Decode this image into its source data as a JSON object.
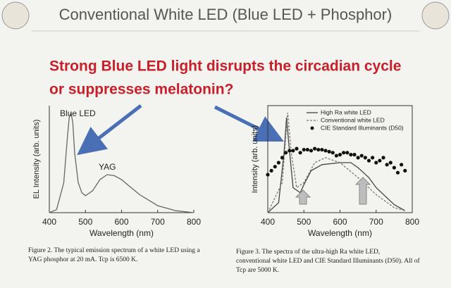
{
  "header": {
    "title": "Conventional White LED (Blue LED + Phosphor)"
  },
  "headline": [
    "Strong Blue LED light disrupts the circadian cycle",
    "or suppresses melatonin?"
  ],
  "chart_data": [
    {
      "type": "line",
      "x_label": "Wavelength (nm)",
      "y_label": "EL Intensity (arb. units)",
      "xlim": [
        400,
        800
      ],
      "xticks": [
        400,
        500,
        600,
        700,
        800
      ],
      "ylim": [
        0,
        1
      ],
      "annotations": [
        "Blue LED",
        "YAG"
      ],
      "series": [
        {
          "color": "#666666",
          "style": "solid",
          "x": [
            400,
            420,
            440,
            450,
            455,
            460,
            465,
            470,
            480,
            490,
            500,
            520,
            540,
            560,
            580,
            600,
            620,
            650,
            700,
            750,
            800
          ],
          "values": [
            0.0,
            0.03,
            0.3,
            0.75,
            0.95,
            1.0,
            0.9,
            0.6,
            0.3,
            0.2,
            0.17,
            0.22,
            0.33,
            0.38,
            0.37,
            0.33,
            0.27,
            0.18,
            0.07,
            0.02,
            0.0
          ]
        }
      ]
    },
    {
      "type": "line",
      "x_label": "Wavelength (nm)",
      "y_label": "Intensity (arb. units)",
      "xlim": [
        400,
        800
      ],
      "xticks": [
        400,
        500,
        600,
        700,
        800
      ],
      "ylim": [
        0,
        1
      ],
      "legend": "upper right",
      "series": [
        {
          "name": "High Ra white LED",
          "color": "#444444",
          "style": "solid",
          "x": [
            400,
            430,
            445,
            452,
            458,
            470,
            490,
            500,
            520,
            550,
            600,
            630,
            650,
            680,
            700,
            750,
            780
          ],
          "values": [
            0.0,
            0.1,
            0.6,
            0.95,
            0.7,
            0.25,
            0.2,
            0.28,
            0.42,
            0.48,
            0.5,
            0.5,
            0.45,
            0.35,
            0.25,
            0.08,
            0.02
          ]
        },
        {
          "name": "Conventional white LED",
          "color": "#777777",
          "style": "dashed",
          "x": [
            400,
            440,
            455,
            465,
            480,
            500,
            530,
            560,
            600,
            650,
            700,
            750,
            780
          ],
          "values": [
            0.0,
            0.3,
            1.0,
            0.6,
            0.25,
            0.3,
            0.5,
            0.55,
            0.5,
            0.35,
            0.18,
            0.05,
            0.02
          ]
        },
        {
          "name": "CIE Standard Illuminants (D50)",
          "color": "#111111",
          "style": "dots",
          "x": [
            400,
            410,
            420,
            430,
            440,
            450,
            460,
            470,
            480,
            490,
            500,
            510,
            520,
            530,
            540,
            550,
            560,
            570,
            580,
            590,
            600,
            610,
            620,
            630,
            640,
            650,
            660,
            670,
            680,
            690,
            700,
            710,
            720,
            730,
            740,
            750,
            760,
            770,
            780
          ],
          "values": [
            0.38,
            0.42,
            0.46,
            0.5,
            0.55,
            0.6,
            0.62,
            0.62,
            0.64,
            0.6,
            0.63,
            0.63,
            0.62,
            0.64,
            0.63,
            0.63,
            0.62,
            0.61,
            0.6,
            0.57,
            0.58,
            0.6,
            0.6,
            0.58,
            0.58,
            0.55,
            0.57,
            0.55,
            0.52,
            0.55,
            0.5,
            0.52,
            0.55,
            0.48,
            0.5,
            0.45,
            0.4,
            0.48,
            0.42
          ]
        }
      ]
    }
  ],
  "captions": [
    [
      "Figure 2. The typical emission spectrum of a white LED using a",
      "YAG phosphor at 20 mA. Tcp is 6500 K."
    ],
    [
      "Figure 3. The spectra of the ultra-high Ra white LED,",
      "conventional white LED and CIE Standard Illuminants (D50). All of",
      "Tcp are 5000 K."
    ]
  ]
}
